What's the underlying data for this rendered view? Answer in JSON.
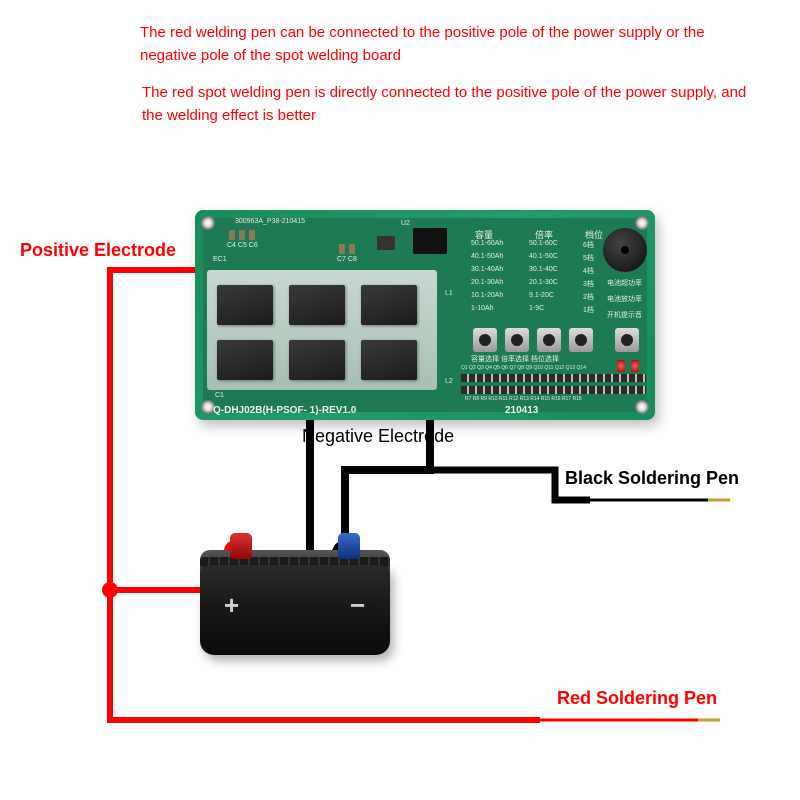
{
  "colors": {
    "red": "#ff0000",
    "black": "#000000",
    "pcb_green": "#1e7a52",
    "pcb_light": "#239b6b",
    "silver": "#c0c8c4",
    "white_bg": "#ffffff"
  },
  "instructions": {
    "line1": "The red welding pen can be connected to the positive pole of the power supply or the negative pole of the spot welding board",
    "line2": "The red spot welding pen is directly connected to the positive pole of the power supply, and the welding effect is better"
  },
  "labels": {
    "positive_electrode": "Positive Electrode",
    "negative_electrode": "Negative Electrode",
    "black_pen": "Black Soldering Pen",
    "red_pen": "Red Soldering Pen"
  },
  "pcb": {
    "top_silk": "300963A_P38-210415",
    "cap_labels": "C4 C5 C6",
    "ec1": "EC1",
    "u2": "U2",
    "bottom_left": "Q-DHJ02B(H-PSOF-    1)-REV1.0",
    "bottom_center": "210413",
    "d1": "D1",
    "d2": "D2",
    "c7c8": "C7 C8",
    "l1": "L1",
    "l2": "L2",
    "c1": "C1",
    "table_col1_header": "容量",
    "table_col2_header": "倍率",
    "table_col3_header": "档位",
    "table_rows": [
      [
        "50.1-60Ah",
        "50.1-60C",
        "6档"
      ],
      [
        "40.1-50Ah",
        "40.1-50C",
        "5档"
      ],
      [
        "30.1-40Ah",
        "30.1-40C",
        "4档"
      ],
      [
        "20.1-30Ah",
        "20.1-30C",
        "3档"
      ],
      [
        "10.1-20Ah",
        "9.1-20C",
        "2档"
      ],
      [
        "1-10Ah",
        "1-9C",
        "1档"
      ]
    ],
    "side_labels": [
      "电池超功率",
      "电池放功率",
      "开机提示音"
    ],
    "button_labels": "容量选择 倍率选择 档位选择",
    "q_row": "Q1 Q2 Q3 Q4 Q5 Q6 Q7 Q8 Q9 Q10 Q11 Q12 Q13 Q14",
    "r_row": "R7 R8 R9 R10 R11 R12 R13 R14 R15 R16 R17 R18",
    "d_row": "D1 D2 D3 D4 D5 D6 D7"
  },
  "battery": {
    "plus": "+",
    "minus": "−"
  },
  "wires": {
    "red_stroke_width": 6,
    "black_stroke_width": 7,
    "pen_stroke_width": 3
  }
}
